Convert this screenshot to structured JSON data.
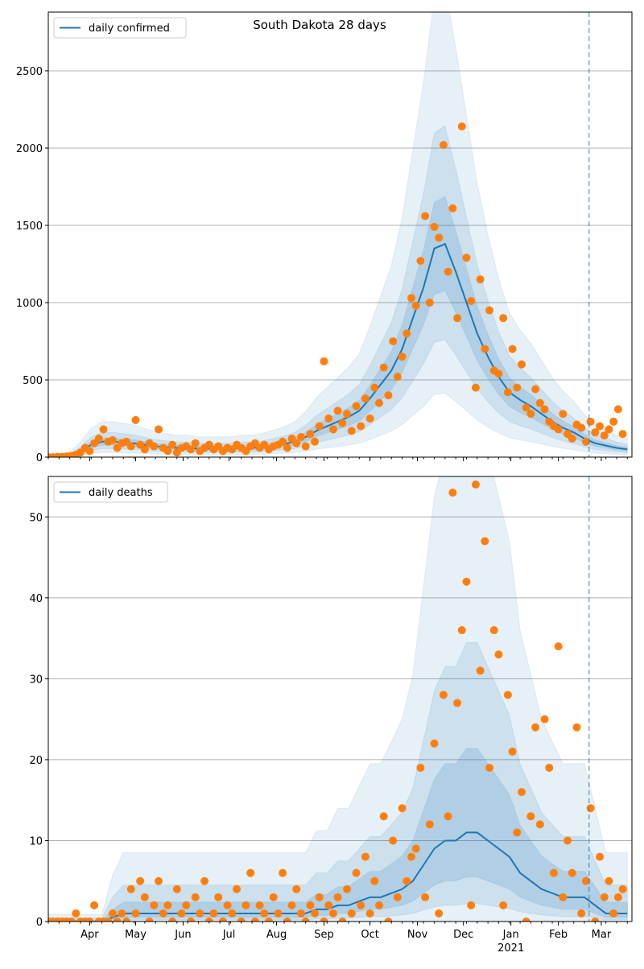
{
  "title": "South Dakota 28 days",
  "chart_data": [
    {
      "type": "line",
      "panel": "cases",
      "title": "South Dakota 28 days",
      "legend": "daily confirmed",
      "legend_placement": "top-left",
      "x_start": "2020-03-05",
      "x_end": "2021-03-21",
      "ylim": [
        0,
        2880
      ],
      "yticks": [
        0,
        500,
        1000,
        1500,
        2000,
        2500
      ],
      "grid": "y",
      "forecast_start": "2021-02-21",
      "median_step_days": 7,
      "median": [
        0,
        2,
        10,
        40,
        80,
        100,
        100,
        95,
        90,
        80,
        70,
        65,
        60,
        60,
        55,
        55,
        55,
        55,
        60,
        60,
        65,
        75,
        85,
        100,
        130,
        170,
        200,
        230,
        260,
        300,
        380,
        470,
        560,
        700,
        900,
        1100,
        1350,
        1380,
        1200,
        1000,
        800,
        650,
        520,
        420,
        370,
        330,
        280,
        230,
        190,
        160,
        120,
        90,
        75,
        60,
        50
      ],
      "bands": [
        {
          "name": "outer",
          "lo_mult": 0.3,
          "hi_mult": 2.2,
          "hi_add": 10
        },
        {
          "name": "middle",
          "lo_mult": 0.55,
          "hi_mult": 1.55,
          "hi_add": 5
        },
        {
          "name": "inner",
          "lo_mult": 0.78,
          "hi_mult": 1.22,
          "hi_add": 2
        }
      ],
      "observed_step_days": 3,
      "observed": [
        0,
        0,
        1,
        2,
        5,
        8,
        15,
        30,
        60,
        40,
        90,
        120,
        180,
        100,
        110,
        60,
        90,
        100,
        70,
        240,
        80,
        50,
        90,
        70,
        180,
        60,
        40,
        80,
        30,
        60,
        70,
        50,
        90,
        40,
        60,
        80,
        50,
        70,
        40,
        60,
        50,
        80,
        60,
        40,
        70,
        90,
        60,
        80,
        50,
        70,
        80,
        100,
        60,
        120,
        90,
        130,
        70,
        150,
        100,
        200,
        620,
        250,
        180,
        300,
        220,
        280,
        170,
        330,
        200,
        380,
        250,
        450,
        350,
        580,
        400,
        750,
        520,
        650,
        800,
        1030,
        980,
        1270,
        1560,
        1000,
        1490,
        1420,
        2020,
        1200,
        1610,
        900,
        2140,
        1290,
        1010,
        450,
        1150,
        700,
        950,
        560,
        540,
        900,
        420,
        700,
        450,
        600,
        320,
        280,
        440,
        350,
        310,
        230,
        200,
        180,
        280,
        150,
        120,
        210,
        190,
        100,
        230,
        160,
        200,
        140,
        180,
        230,
        310,
        150
      ]
    },
    {
      "type": "line",
      "panel": "deaths",
      "legend": "daily deaths",
      "legend_placement": "top-left",
      "x_start": "2020-03-05",
      "x_end": "2021-03-21",
      "ylim": [
        0,
        55
      ],
      "yticks": [
        0,
        10,
        20,
        30,
        40,
        50
      ],
      "grid": "y",
      "forecast_start": "2021-02-21",
      "median_step_days": 7,
      "median": [
        0,
        0,
        0,
        0,
        0,
        0,
        0.5,
        1,
        1,
        1,
        1,
        1,
        1,
        1,
        1,
        1,
        1,
        1,
        1,
        1,
        1,
        1,
        1,
        1,
        1,
        1.5,
        1.5,
        2,
        2,
        2.5,
        3,
        3,
        3.5,
        4,
        5,
        7,
        9,
        10,
        10,
        11,
        11,
        10,
        9,
        8,
        6,
        5,
        4,
        3.5,
        3,
        3,
        3,
        2,
        1,
        1,
        1
      ],
      "bands": [
        {
          "name": "outer",
          "lo_mult": 0,
          "hi_mult": 5.5,
          "hi_add": 3
        },
        {
          "name": "middle",
          "lo_mult": 0.2,
          "hi_mult": 3,
          "hi_add": 1.5
        },
        {
          "name": "inner",
          "lo_mult": 0.5,
          "hi_mult": 1.9,
          "hi_add": 0.5
        }
      ],
      "observed_step_days": 3,
      "observed": [
        0,
        0,
        0,
        0,
        0,
        0,
        1,
        0,
        0,
        0,
        2,
        0,
        0,
        0,
        1,
        0,
        1,
        0,
        4,
        1,
        5,
        3,
        0,
        2,
        5,
        1,
        2,
        0,
        4,
        1,
        2,
        0,
        3,
        1,
        5,
        0,
        1,
        3,
        0,
        2,
        1,
        4,
        0,
        2,
        6,
        0,
        2,
        1,
        0,
        3,
        1,
        6,
        0,
        2,
        4,
        1,
        0,
        2,
        1,
        3,
        0,
        2,
        1,
        3,
        0,
        4,
        1,
        6,
        2,
        8,
        1,
        5,
        2,
        13,
        0,
        10,
        3,
        14,
        5,
        8,
        9,
        19,
        3,
        12,
        22,
        1,
        28,
        13,
        53,
        27,
        36,
        42,
        2,
        54,
        31,
        47,
        19,
        36,
        33,
        2,
        28,
        21,
        11,
        16,
        0,
        13,
        24,
        12,
        25,
        19,
        6,
        34,
        3,
        10,
        6,
        24,
        1,
        5,
        14,
        0,
        8,
        3,
        5,
        1,
        3,
        4
      ]
    }
  ],
  "xaxis": {
    "ticks": [
      {
        "label": "Apr",
        "date": "2020-04-01"
      },
      {
        "label": "May",
        "date": "2020-05-01"
      },
      {
        "label": "Jun",
        "date": "2020-06-01"
      },
      {
        "label": "Jul",
        "date": "2020-07-01"
      },
      {
        "label": "Aug",
        "date": "2020-08-01"
      },
      {
        "label": "Sep",
        "date": "2020-09-01"
      },
      {
        "label": "Oct",
        "date": "2020-10-01"
      },
      {
        "label": "Nov",
        "date": "2020-11-01"
      },
      {
        "label": "Dec",
        "date": "2020-12-01"
      },
      {
        "label": "Jan",
        "date": "2021-01-01"
      },
      {
        "label": "Feb",
        "date": "2021-02-01"
      },
      {
        "label": "Mar",
        "date": "2021-03-01"
      }
    ],
    "year_label": "2021"
  },
  "colors": {
    "line": "#1f77b4",
    "points": "#ff7f0e",
    "band": "#1f77b4",
    "grid": "#b0b0b0"
  }
}
